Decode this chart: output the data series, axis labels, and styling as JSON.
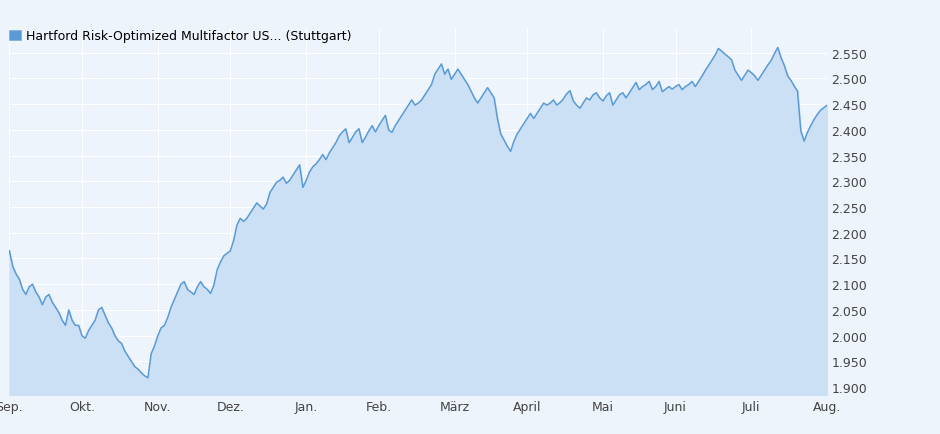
{
  "title": "Hartford Risk-Optimized Multifactor US... (Stuttgart)",
  "title_fontsize": 9.5,
  "line_color": "#5b9bd5",
  "fill_color": "#cce0f5",
  "background_color": "#eef4fb",
  "grid_color": "#ffffff",
  "ylim": [
    1.885,
    2.595
  ],
  "yticks": [
    1.9,
    1.95,
    2.0,
    2.05,
    2.1,
    2.15,
    2.2,
    2.25,
    2.3,
    2.35,
    2.4,
    2.45,
    2.5,
    2.55
  ],
  "x_labels": [
    "Sep.",
    "Okt.",
    "Nov.",
    "Dez.",
    "Jan.",
    "Feb.",
    "März",
    "April",
    "Mai",
    "Juni",
    "Juli",
    "Aug."
  ],
  "legend_color": "#5b9bd5",
  "legend_label": "Hartford Risk-Optimized Multifactor US... (Stuttgart)",
  "line_width": 1.1,
  "data_points": [
    2.165,
    2.135,
    2.12,
    2.11,
    2.09,
    2.08,
    2.095,
    2.1,
    2.085,
    2.075,
    2.06,
    2.075,
    2.08,
    2.065,
    2.055,
    2.045,
    2.03,
    2.02,
    2.05,
    2.03,
    2.02,
    2.02,
    2.0,
    1.995,
    2.01,
    2.02,
    2.03,
    2.05,
    2.055,
    2.04,
    2.025,
    2.015,
    2.0,
    1.99,
    1.985,
    1.97,
    1.96,
    1.95,
    1.94,
    1.935,
    1.928,
    1.922,
    1.918,
    1.965,
    1.98,
    2.0,
    2.015,
    2.02,
    2.035,
    2.055,
    2.07,
    2.085,
    2.1,
    2.105,
    2.09,
    2.085,
    2.08,
    2.095,
    2.105,
    2.095,
    2.09,
    2.082,
    2.098,
    2.128,
    2.143,
    2.155,
    2.16,
    2.165,
    2.185,
    2.215,
    2.228,
    2.222,
    2.228,
    2.238,
    2.248,
    2.258,
    2.252,
    2.246,
    2.256,
    2.278,
    2.288,
    2.298,
    2.302,
    2.308,
    2.296,
    2.302,
    2.312,
    2.322,
    2.332,
    2.288,
    2.302,
    2.318,
    2.328,
    2.334,
    2.342,
    2.352,
    2.342,
    2.355,
    2.365,
    2.375,
    2.388,
    2.396,
    2.402,
    2.375,
    2.385,
    2.396,
    2.402,
    2.375,
    2.386,
    2.398,
    2.408,
    2.396,
    2.408,
    2.418,
    2.428,
    2.4,
    2.395,
    2.408,
    2.418,
    2.428,
    2.438,
    2.448,
    2.458,
    2.448,
    2.452,
    2.458,
    2.468,
    2.478,
    2.488,
    2.508,
    2.518,
    2.528,
    2.508,
    2.518,
    2.498,
    2.508,
    2.518,
    2.508,
    2.498,
    2.488,
    2.475,
    2.462,
    2.452,
    2.462,
    2.472,
    2.482,
    2.472,
    2.462,
    2.422,
    2.392,
    2.38,
    2.368,
    2.358,
    2.378,
    2.392,
    2.402,
    2.412,
    2.422,
    2.432,
    2.422,
    2.432,
    2.442,
    2.452,
    2.448,
    2.452,
    2.458,
    2.448,
    2.453,
    2.46,
    2.47,
    2.476,
    2.456,
    2.448,
    2.442,
    2.452,
    2.462,
    2.458,
    2.468,
    2.472,
    2.462,
    2.456,
    2.466,
    2.472,
    2.448,
    2.458,
    2.468,
    2.472,
    2.462,
    2.472,
    2.482,
    2.492,
    2.478,
    2.484,
    2.488,
    2.494,
    2.478,
    2.484,
    2.494,
    2.474,
    2.479,
    2.484,
    2.479,
    2.484,
    2.488,
    2.478,
    2.484,
    2.488,
    2.494,
    2.484,
    2.494,
    2.504,
    2.515,
    2.525,
    2.535,
    2.545,
    2.558,
    2.553,
    2.547,
    2.542,
    2.536,
    2.516,
    2.506,
    2.496,
    2.506,
    2.516,
    2.511,
    2.505,
    2.496,
    2.506,
    2.516,
    2.526,
    2.535,
    2.548,
    2.56,
    2.54,
    2.525,
    2.505,
    2.496,
    2.485,
    2.475,
    2.398,
    2.378,
    2.395,
    2.408,
    2.42,
    2.43,
    2.438,
    2.443,
    2.448
  ]
}
